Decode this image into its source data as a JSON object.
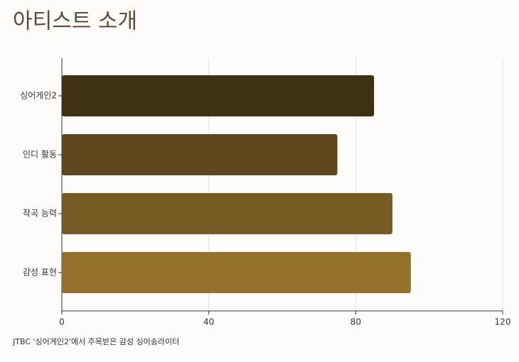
{
  "chart_data": {
    "type": "bar",
    "orientation": "horizontal",
    "title": "아티스트 소개",
    "caption": "JTBC '싱어게인2'에서 주목받은 감성 싱어송라이터",
    "categories": [
      "싱어게인2",
      "인디 활동",
      "작곡 능력",
      "감성 표현"
    ],
    "values": [
      85,
      75,
      90,
      95
    ],
    "colors": [
      "#3f3212",
      "#5e471d",
      "#785b22",
      "#94722c"
    ],
    "xlim": [
      0,
      120
    ],
    "xticks": [
      0,
      40,
      80,
      120
    ],
    "grid": true
  }
}
